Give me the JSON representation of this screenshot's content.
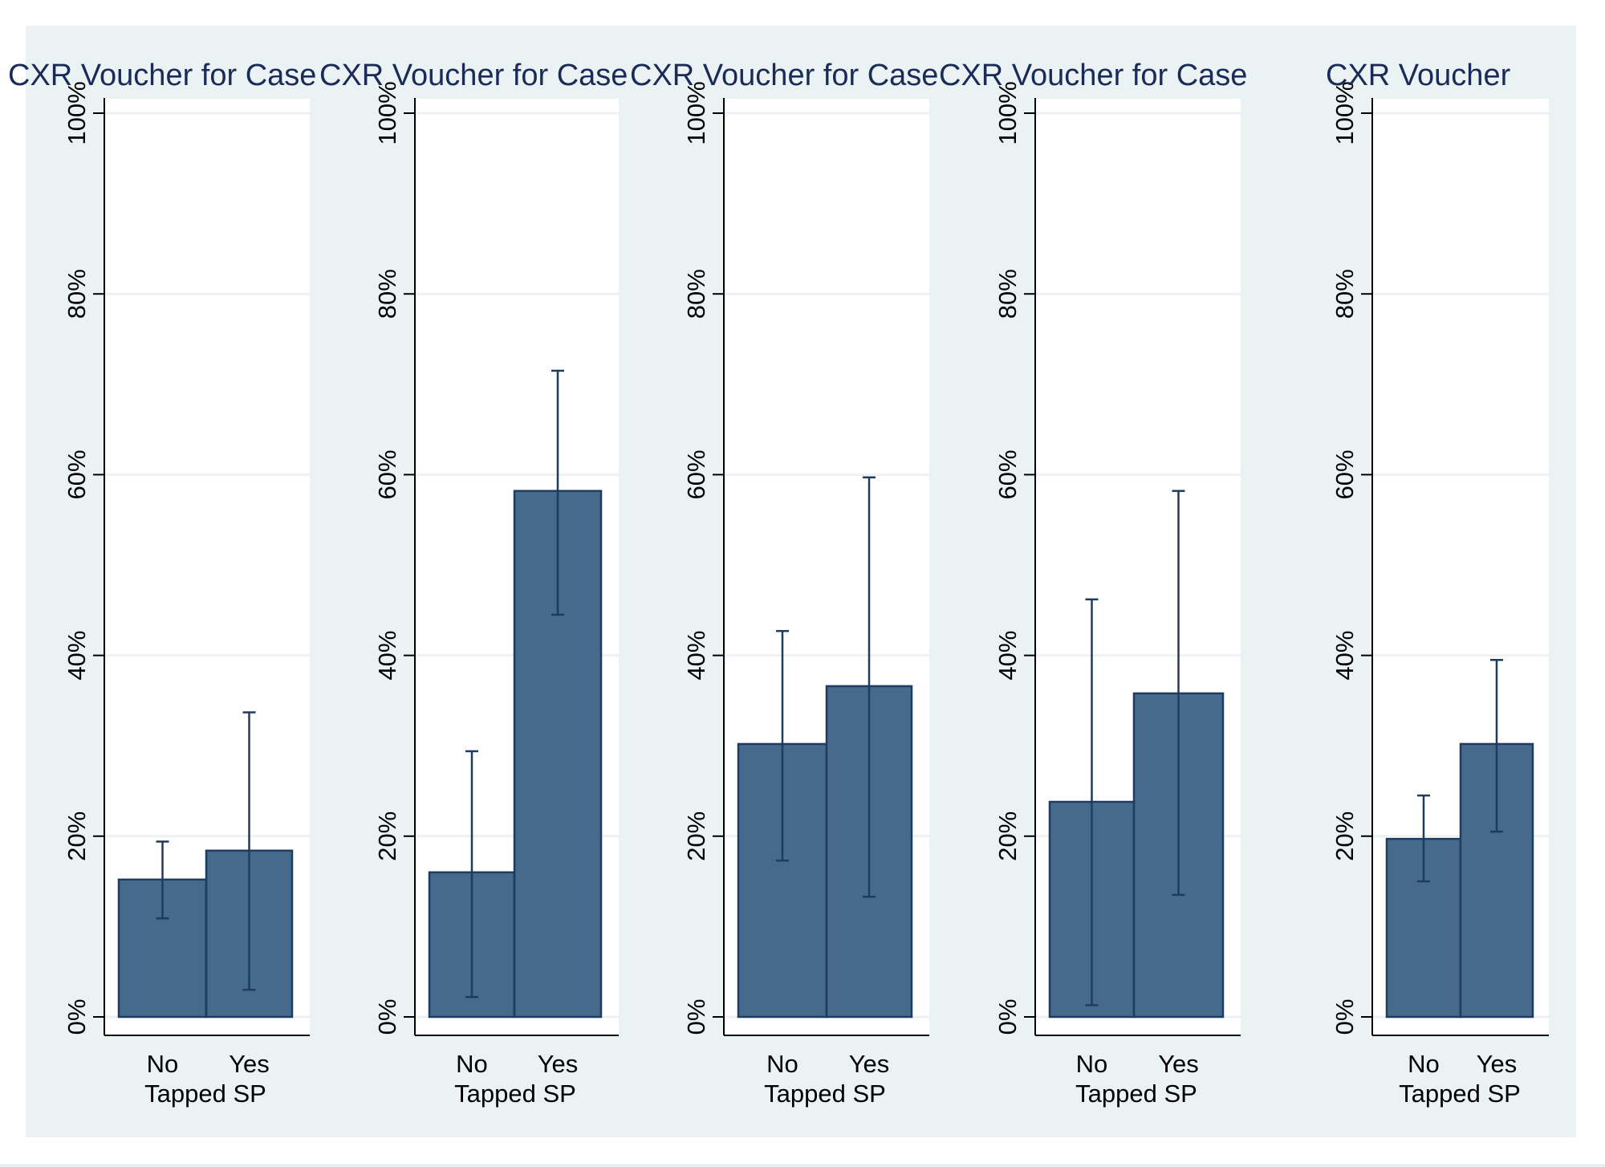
{
  "colors": {
    "outer_background": "#eaf2f3",
    "plot_background": "#ffffff",
    "gridline": "#eef1f3",
    "bar_fill": "#466a8c",
    "bar_edge": "#1f3c60",
    "error_bar": "#1f3c60",
    "axis": "#000000",
    "title": "#1a2b57"
  },
  "chart_data": [
    {
      "type": "bar",
      "title": "CXR Voucher for Case",
      "xlabel": "Tapped SP",
      "ylabel": "",
      "categories": [
        "No",
        "Yes"
      ],
      "values": [
        15.2,
        18.4
      ],
      "ci_low": [
        10.9,
        3.0
      ],
      "ci_high": [
        19.4,
        33.7
      ],
      "ylim": [
        0,
        100
      ],
      "yticks": [
        "0%",
        "20%",
        "40%",
        "60%",
        "80%",
        "100%"
      ],
      "grid": true
    },
    {
      "type": "bar",
      "title": "CXR Voucher for Case",
      "xlabel": "Tapped SP",
      "ylabel": "",
      "categories": [
        "No",
        "Yes"
      ],
      "values": [
        16.0,
        58.2
      ],
      "ci_low": [
        2.2,
        44.5
      ],
      "ci_high": [
        29.4,
        71.5
      ],
      "ylim": [
        0,
        100
      ],
      "yticks": [
        "0%",
        "20%",
        "40%",
        "60%",
        "80%",
        "100%"
      ],
      "grid": true
    },
    {
      "type": "bar",
      "title": "CXR Voucher for Case",
      "xlabel": "Tapped SP",
      "ylabel": "",
      "categories": [
        "No",
        "Yes"
      ],
      "values": [
        30.2,
        36.6
      ],
      "ci_low": [
        17.3,
        13.3
      ],
      "ci_high": [
        42.7,
        59.7
      ],
      "ylim": [
        0,
        100
      ],
      "yticks": [
        "0%",
        "20%",
        "40%",
        "60%",
        "80%",
        "100%"
      ],
      "grid": true
    },
    {
      "type": "bar",
      "title": "CXR Voucher for Case",
      "xlabel": "Tapped SP",
      "ylabel": "",
      "categories": [
        "No",
        "Yes"
      ],
      "values": [
        23.8,
        35.8
      ],
      "ci_low": [
        1.3,
        13.5
      ],
      "ci_high": [
        46.2,
        58.2
      ],
      "ylim": [
        0,
        100
      ],
      "yticks": [
        "0%",
        "20%",
        "40%",
        "60%",
        "80%",
        "100%"
      ],
      "grid": true
    },
    {
      "type": "bar",
      "title": "CXR Voucher",
      "xlabel": "Tapped SP",
      "ylabel": "",
      "categories": [
        "No",
        "Yes"
      ],
      "values": [
        19.7,
        30.2
      ],
      "ci_low": [
        15.0,
        20.5
      ],
      "ci_high": [
        24.5,
        39.5
      ],
      "ylim": [
        0,
        100
      ],
      "yticks": [
        "0%",
        "20%",
        "40%",
        "60%",
        "80%",
        "100%"
      ],
      "grid": true
    }
  ]
}
